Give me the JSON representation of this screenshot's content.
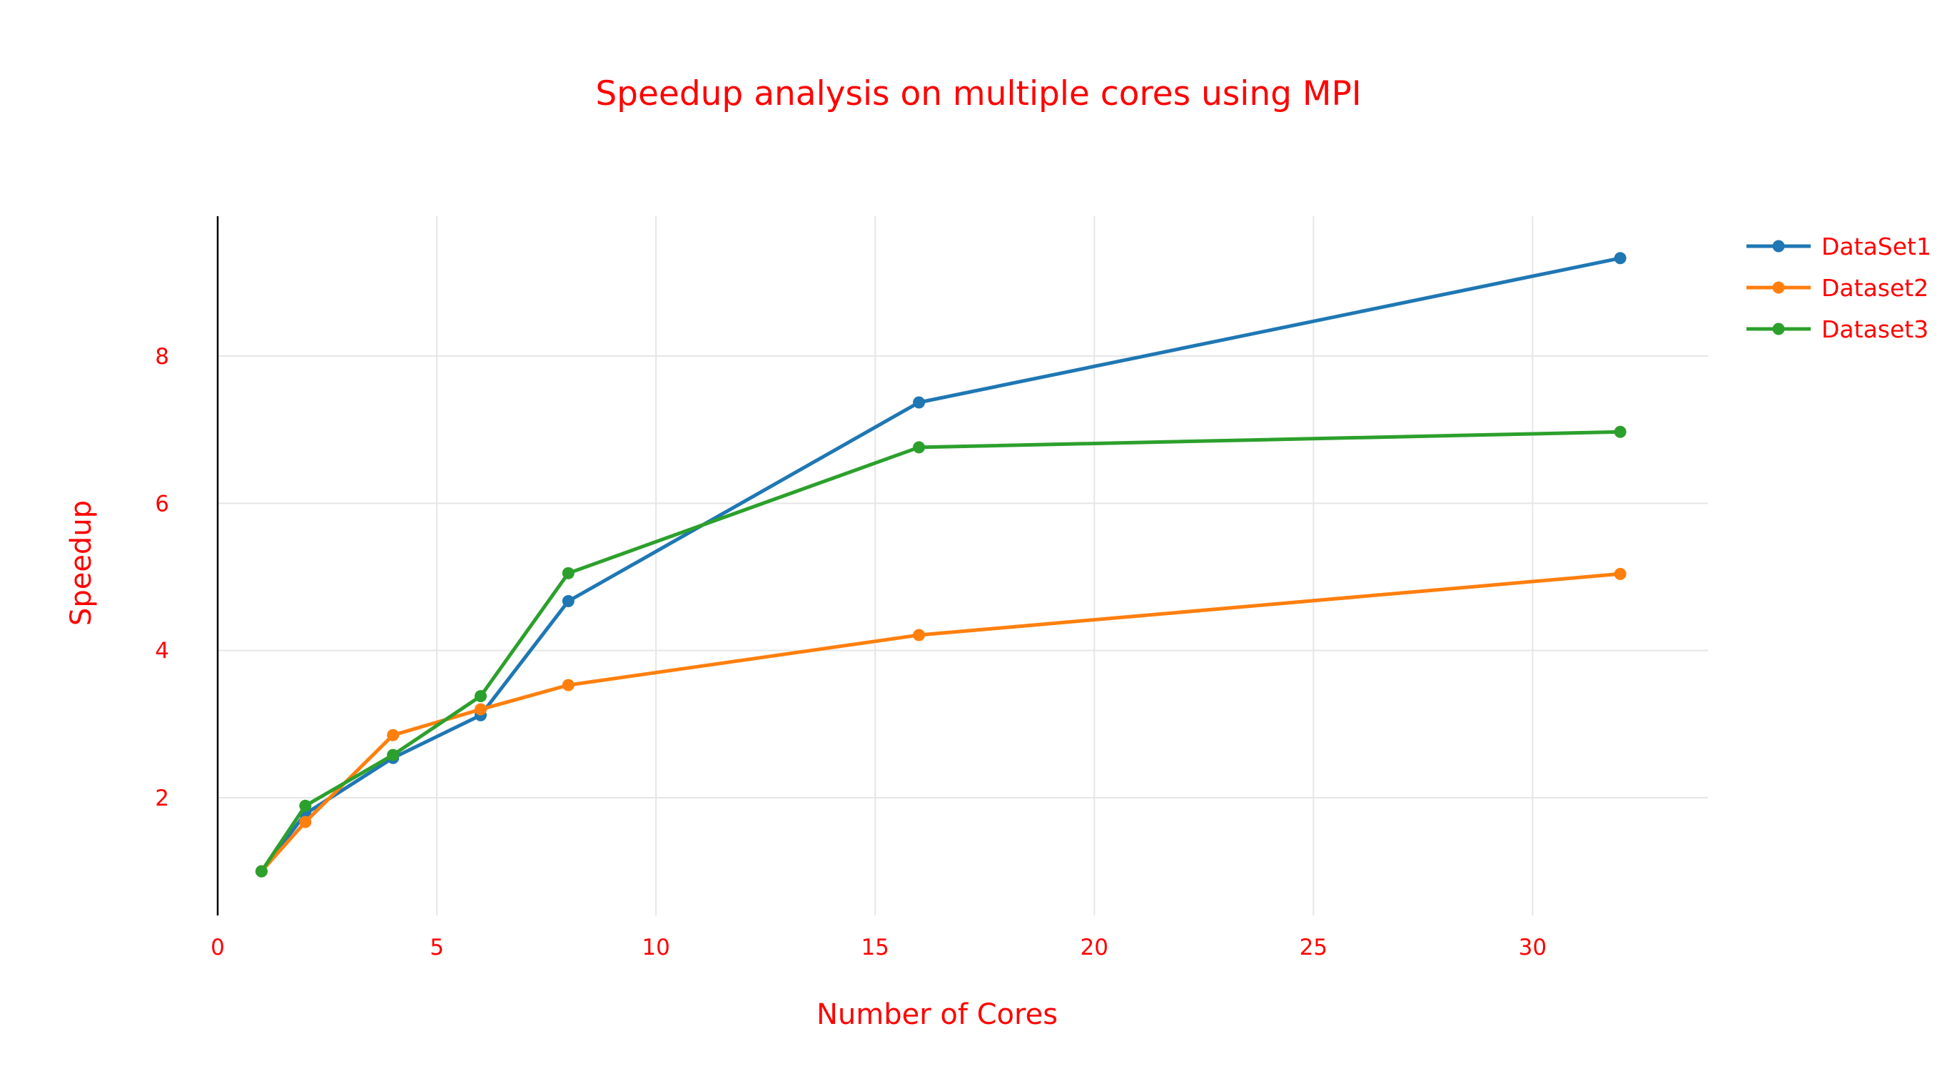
{
  "colors": {
    "text": "#ff0000",
    "grid": "#e6e6e6",
    "axis_line": "#000000",
    "background": "#ffffff"
  },
  "chart_data": {
    "type": "line",
    "title": "Speedup analysis on multiple cores using MPI",
    "xlabel": "Number of Cores",
    "ylabel": "Speedup",
    "xlim": [
      0,
      34
    ],
    "ylim": [
      0.4,
      9.9
    ],
    "x_ticks": [
      0,
      5,
      10,
      15,
      20,
      25,
      30
    ],
    "y_ticks": [
      2,
      4,
      6,
      8
    ],
    "grid": true,
    "legend_position": "top-right",
    "markers": true,
    "series": [
      {
        "name": "DataSet1",
        "color": "#1f77b4",
        "x": [
          1,
          2,
          4,
          6,
          8,
          16,
          32
        ],
        "y": [
          1.0,
          1.78,
          2.54,
          3.12,
          4.67,
          7.37,
          9.33
        ]
      },
      {
        "name": "Dataset2",
        "color": "#ff7f0e",
        "x": [
          1,
          2,
          4,
          6,
          8,
          16,
          32
        ],
        "y": [
          1.0,
          1.67,
          2.85,
          3.2,
          3.53,
          4.21,
          5.04
        ]
      },
      {
        "name": "Dataset3",
        "color": "#2ca02c",
        "x": [
          1,
          2,
          4,
          6,
          8,
          16,
          32
        ],
        "y": [
          1.0,
          1.89,
          2.58,
          3.38,
          5.05,
          6.76,
          6.97
        ]
      }
    ]
  }
}
